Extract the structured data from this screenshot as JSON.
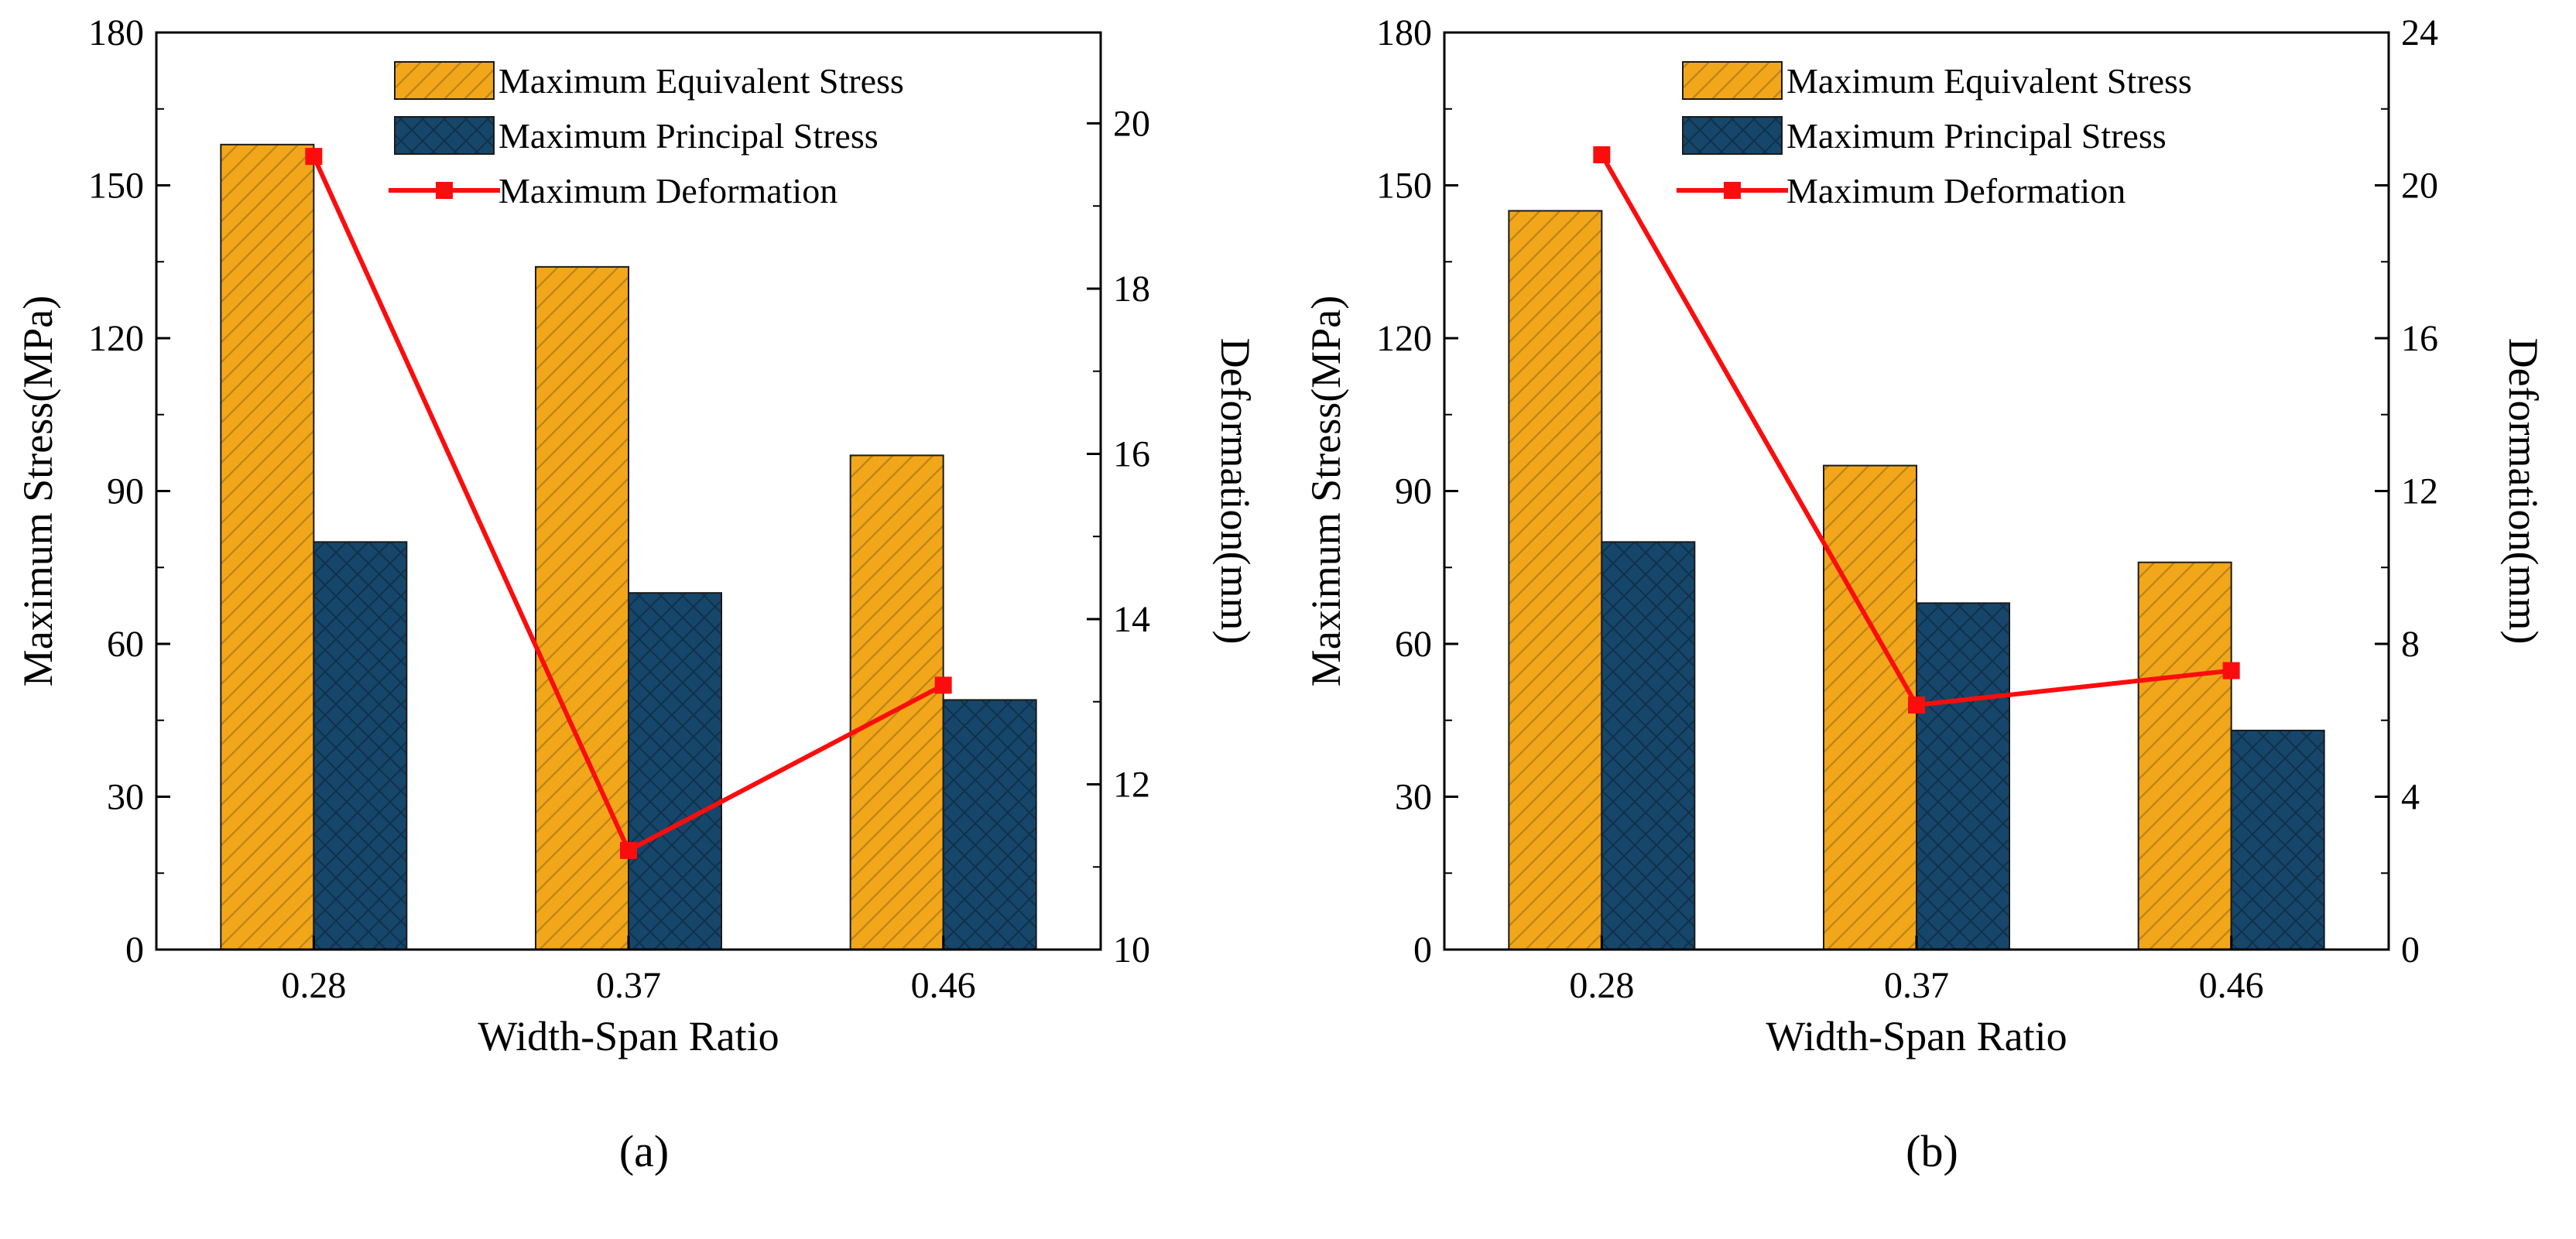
{
  "figure": {
    "captions": [
      "(a)",
      "(b)"
    ],
    "colors": {
      "equivalent": "#F2A71B",
      "equivalent_hatch": "#8C6510",
      "principal": "#17466B",
      "principal_hatch": "#0A2335",
      "deformation": "#FB0D0D",
      "frame": "#000000"
    }
  },
  "chart_data": [
    {
      "type": "bar",
      "panel": "a",
      "caption": "(a)",
      "categories": [
        "0.28",
        "0.37",
        "0.46"
      ],
      "series": [
        {
          "name": "Maximum Equivalent Stress",
          "type": "bar",
          "axis": "left",
          "values": [
            158,
            134,
            97
          ]
        },
        {
          "name": "Maximum Principal Stress",
          "type": "bar",
          "axis": "left",
          "values": [
            80,
            70,
            49
          ]
        },
        {
          "name": "Maximum Deformation",
          "type": "line",
          "axis": "right",
          "values": [
            19.6,
            11.2,
            13.2
          ]
        }
      ],
      "xlabel": "Width-Span Ratio",
      "ylabel_left": "Maximum Stress(MPa)",
      "ylabel_right": "Deformation(mm)",
      "ylim_left": [
        0,
        180
      ],
      "yticks_left": [
        0,
        30,
        60,
        90,
        120,
        150,
        180
      ],
      "ylim_right": [
        10,
        21.1
      ],
      "yticks_right": [
        10,
        12,
        14,
        16,
        18,
        20
      ],
      "grid": false,
      "legend_position": "top-left-inside"
    },
    {
      "type": "bar",
      "panel": "b",
      "caption": "(b)",
      "categories": [
        "0.28",
        "0.37",
        "0.46"
      ],
      "series": [
        {
          "name": "Maximum Equivalent Stress",
          "type": "bar",
          "axis": "left",
          "values": [
            145,
            95,
            76
          ]
        },
        {
          "name": "Maximum Principal Stress",
          "type": "bar",
          "axis": "left",
          "values": [
            80,
            68,
            43
          ]
        },
        {
          "name": "Maximum Deformation",
          "type": "line",
          "axis": "right",
          "values": [
            20.8,
            6.4,
            7.3
          ]
        }
      ],
      "xlabel": "Width-Span Ratio",
      "ylabel_left": "Maximum Stress(MPa)",
      "ylabel_right": "Deformation(mm)",
      "ylim_left": [
        0,
        180
      ],
      "yticks_left": [
        0,
        30,
        60,
        90,
        120,
        150,
        180
      ],
      "ylim_right": [
        0,
        24
      ],
      "yticks_right": [
        0,
        4,
        8,
        12,
        16,
        20,
        24
      ],
      "grid": false,
      "legend_position": "top-left-inside"
    }
  ]
}
